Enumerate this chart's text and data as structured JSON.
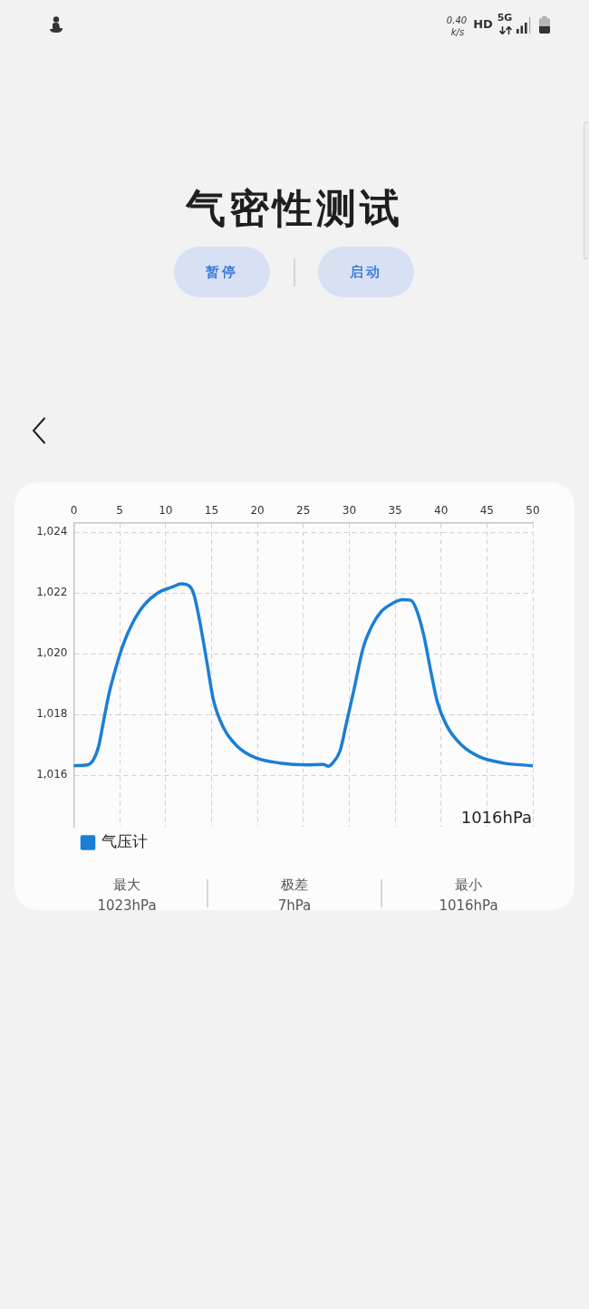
{
  "chart_data": {
    "type": "line",
    "title": "气密性测试",
    "x": [
      0,
      1.5,
      2.1,
      2.7,
      3.2,
      3.8,
      4.6,
      5.4,
      6.4,
      7.6,
      9.2,
      10.7,
      11.7,
      12.6,
      13.1,
      13.7,
      14.5,
      15.2,
      16.3,
      17.8,
      19.8,
      22.4,
      25.4,
      27.2,
      27.7,
      28.2,
      29.0,
      29.7,
      30.5,
      31.5,
      32.5,
      33.5,
      34.8,
      35.8,
      36.7,
      37.3,
      38.1,
      38.9,
      39.6,
      40.6,
      42.2,
      44.2,
      46.7,
      50
    ],
    "series": [
      {
        "name": "气压计",
        "color": "#1a7fd6",
        "values": [
          1016.31,
          1016.34,
          1016.49,
          1016.95,
          1017.72,
          1018.64,
          1019.56,
          1020.32,
          1021.01,
          1021.58,
          1022.01,
          1022.19,
          1022.3,
          1022.22,
          1021.93,
          1021.09,
          1019.71,
          1018.48,
          1017.56,
          1016.95,
          1016.57,
          1016.4,
          1016.34,
          1016.35,
          1016.29,
          1016.4,
          1016.8,
          1017.72,
          1018.79,
          1020.17,
          1020.93,
          1021.39,
          1021.67,
          1021.78,
          1021.76,
          1021.47,
          1020.63,
          1019.4,
          1018.41,
          1017.64,
          1017.0,
          1016.6,
          1016.4,
          1016.31
        ]
      }
    ],
    "xlim": [
      0,
      50
    ],
    "xticks": [
      0,
      5,
      10,
      15,
      20,
      25,
      30,
      35,
      40,
      45,
      50
    ],
    "ylim": [
      1014.3,
      1024.3
    ],
    "yticks": [
      {
        "value": 1016,
        "label": "1,016"
      },
      {
        "value": 1018,
        "label": "1,018"
      },
      {
        "value": 1020,
        "label": "1,020"
      },
      {
        "value": 1022,
        "label": "1,022"
      },
      {
        "value": 1024,
        "label": "1,024"
      }
    ],
    "grid": true,
    "legend": "bottom left",
    "marker": "none",
    "line_style": "solid",
    "annotations": [
      "0.40",
      "k/s",
      "HD",
      "5G",
      "暂停",
      "启动",
      "1016hPa",
      "最大",
      "1023hPa",
      "极差",
      "7hPa",
      "最小",
      "1016hPa"
    ]
  }
}
